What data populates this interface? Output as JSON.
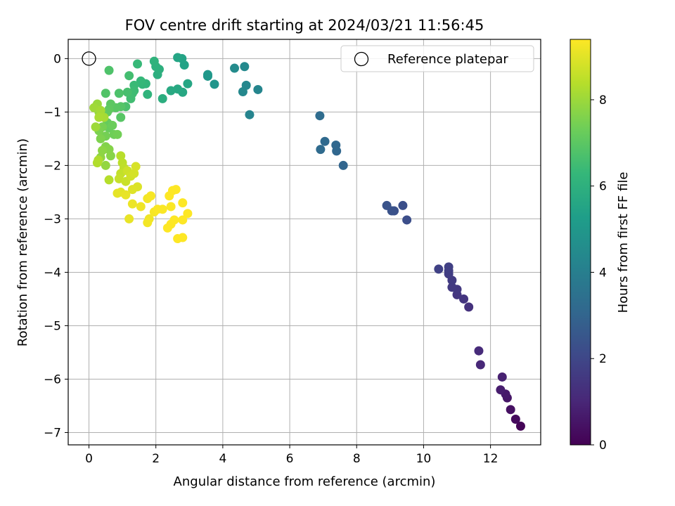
{
  "chart_data": {
    "type": "scatter",
    "title": "FOV centre drift starting at 2024/03/21 11:56:45",
    "xlabel": "Angular distance from reference (arcmin)",
    "ylabel": "Rotation from reference (arcmin)",
    "xlim": [
      -0.62,
      13.5
    ],
    "ylim": [
      -7.23,
      0.36
    ],
    "xticks": [
      0,
      2,
      4,
      6,
      8,
      10,
      12
    ],
    "yticks": [
      0,
      -1,
      -2,
      -3,
      -4,
      -5,
      -6,
      -7
    ],
    "grid": true,
    "legend": {
      "placement": "top-right",
      "entries": [
        "Reference platepar"
      ]
    },
    "reference_point": {
      "x": 0,
      "y": 0
    },
    "colorbar": {
      "label": "Hours from first FF file",
      "range": [
        0,
        9.4
      ],
      "ticks": [
        0,
        2,
        4,
        6,
        8
      ],
      "colormap": [
        "#440154",
        "#482878",
        "#3e4989",
        "#31688e",
        "#26828e",
        "#1f9e89",
        "#35b779",
        "#6ece58",
        "#b5de2b",
        "#fde725"
      ]
    },
    "points": [
      [
        12.9,
        -6.88,
        0.1
      ],
      [
        12.75,
        -6.75,
        0.25
      ],
      [
        12.6,
        -6.57,
        0.4
      ],
      [
        12.5,
        -6.35,
        0.55
      ],
      [
        12.45,
        -6.28,
        0.65
      ],
      [
        12.3,
        -6.2,
        0.75
      ],
      [
        12.35,
        -5.96,
        0.85
      ],
      [
        11.7,
        -5.73,
        1.05
      ],
      [
        11.65,
        -5.47,
        1.15
      ],
      [
        11.35,
        -4.65,
        1.35
      ],
      [
        11.2,
        -4.5,
        1.45
      ],
      [
        11.0,
        -4.42,
        1.5
      ],
      [
        11.0,
        -4.32,
        1.55
      ],
      [
        10.85,
        -4.28,
        1.6
      ],
      [
        10.85,
        -4.15,
        1.65
      ],
      [
        10.75,
        -4.03,
        1.7
      ],
      [
        10.75,
        -3.97,
        1.75
      ],
      [
        10.75,
        -3.9,
        1.8
      ],
      [
        10.45,
        -3.94,
        1.85
      ],
      [
        9.5,
        -3.02,
        2.25
      ],
      [
        9.38,
        -2.75,
        2.3
      ],
      [
        9.12,
        -2.85,
        2.35
      ],
      [
        9.05,
        -2.85,
        2.4
      ],
      [
        8.9,
        -2.75,
        2.45
      ],
      [
        7.6,
        -2.0,
        3.05
      ],
      [
        7.4,
        -1.73,
        3.1
      ],
      [
        7.38,
        -1.62,
        3.15
      ],
      [
        7.05,
        -1.55,
        3.2
      ],
      [
        6.92,
        -1.7,
        3.25
      ],
      [
        6.9,
        -1.07,
        3.3
      ],
      [
        4.8,
        -1.05,
        4.25
      ],
      [
        5.05,
        -0.58,
        4.3
      ],
      [
        4.7,
        -0.5,
        4.35
      ],
      [
        4.6,
        -0.62,
        4.4
      ],
      [
        4.65,
        -0.15,
        4.45
      ],
      [
        4.35,
        -0.18,
        4.5
      ],
      [
        3.75,
        -0.48,
        4.9
      ],
      [
        3.55,
        -0.33,
        4.95
      ],
      [
        3.55,
        -0.3,
        5.0
      ],
      [
        2.85,
        -0.12,
        5.4
      ],
      [
        2.78,
        0.0,
        5.45
      ],
      [
        2.65,
        0.02,
        5.5
      ],
      [
        2.95,
        -0.47,
        5.55
      ],
      [
        2.8,
        -0.63,
        5.6
      ],
      [
        2.65,
        -0.57,
        5.65
      ],
      [
        2.45,
        -0.6,
        5.7
      ],
      [
        2.2,
        -0.75,
        5.85
      ],
      [
        2.05,
        -0.3,
        5.9
      ],
      [
        2.1,
        -0.2,
        5.95
      ],
      [
        2.0,
        -0.15,
        6.0
      ],
      [
        1.95,
        -0.05,
        6.05
      ],
      [
        1.75,
        -0.67,
        6.1
      ],
      [
        1.7,
        -0.47,
        6.15
      ],
      [
        1.6,
        -0.48,
        6.2
      ],
      [
        1.55,
        -0.42,
        6.25
      ],
      [
        1.45,
        -0.1,
        6.3
      ],
      [
        1.35,
        -0.5,
        6.35
      ],
      [
        1.35,
        -0.6,
        6.4
      ],
      [
        1.3,
        -0.65,
        6.45
      ],
      [
        1.25,
        -0.75,
        6.5
      ],
      [
        1.2,
        -0.32,
        6.55
      ],
      [
        1.15,
        -0.63,
        6.6
      ],
      [
        1.1,
        -0.9,
        6.65
      ],
      [
        0.9,
        -0.65,
        6.7
      ],
      [
        0.6,
        -0.22,
        6.75
      ],
      [
        0.5,
        -0.65,
        6.8
      ],
      [
        0.95,
        -0.9,
        6.85
      ],
      [
        0.95,
        -1.1,
        6.9
      ],
      [
        0.8,
        -0.92,
        6.95
      ],
      [
        0.65,
        -0.85,
        7.0
      ],
      [
        0.6,
        -0.95,
        7.05
      ],
      [
        0.55,
        -1.0,
        7.1
      ],
      [
        0.55,
        -1.2,
        7.15
      ],
      [
        0.6,
        -1.3,
        7.2
      ],
      [
        0.7,
        -1.25,
        7.25
      ],
      [
        0.75,
        -1.42,
        7.3
      ],
      [
        0.85,
        -1.42,
        7.35
      ],
      [
        0.5,
        -1.45,
        7.4
      ],
      [
        0.4,
        -1.28,
        7.45
      ],
      [
        0.3,
        -1.35,
        7.5
      ],
      [
        0.35,
        -1.5,
        7.55
      ],
      [
        0.5,
        -1.65,
        7.6
      ],
      [
        0.6,
        -1.7,
        7.65
      ],
      [
        0.65,
        -1.82,
        7.7
      ],
      [
        0.4,
        -1.72,
        7.75
      ],
      [
        0.35,
        -1.85,
        7.8
      ],
      [
        0.5,
        -2.0,
        7.85
      ],
      [
        0.3,
        -1.0,
        7.9
      ],
      [
        0.25,
        -0.85,
        7.95
      ],
      [
        0.2,
        -1.28,
        8.0
      ],
      [
        0.15,
        -0.92,
        8.05
      ],
      [
        0.35,
        -0.97,
        8.1
      ],
      [
        0.45,
        -1.1,
        8.15
      ],
      [
        0.3,
        -1.1,
        8.2
      ],
      [
        0.28,
        -1.9,
        8.25
      ],
      [
        0.25,
        -1.95,
        8.3
      ],
      [
        0.6,
        -2.27,
        8.35
      ],
      [
        0.95,
        -1.82,
        8.4
      ],
      [
        1.0,
        -1.95,
        8.45
      ],
      [
        1.05,
        -2.05,
        8.5
      ],
      [
        0.95,
        -2.15,
        8.55
      ],
      [
        0.9,
        -2.25,
        8.6
      ],
      [
        1.1,
        -2.3,
        8.65
      ],
      [
        1.15,
        -2.1,
        8.7
      ],
      [
        1.25,
        -2.2,
        8.75
      ],
      [
        1.35,
        -2.15,
        8.8
      ],
      [
        1.4,
        -2.02,
        8.85
      ],
      [
        1.45,
        -2.4,
        8.9
      ],
      [
        1.3,
        -2.45,
        8.95
      ],
      [
        0.95,
        -2.5,
        9.0
      ],
      [
        0.85,
        -2.52,
        9.05
      ],
      [
        1.1,
        -2.55,
        9.1
      ],
      [
        1.3,
        -2.72,
        9.15
      ],
      [
        1.55,
        -2.77,
        9.2
      ],
      [
        1.75,
        -2.62,
        9.25
      ],
      [
        1.85,
        -2.57,
        9.3
      ],
      [
        1.2,
        -3.0,
        9.1
      ],
      [
        1.8,
        -3.0,
        9.2
      ],
      [
        1.75,
        -3.07,
        9.25
      ],
      [
        1.95,
        -2.87,
        9.3
      ],
      [
        2.05,
        -2.82,
        9.35
      ],
      [
        2.2,
        -2.82,
        9.35
      ],
      [
        2.4,
        -2.57,
        9.4
      ],
      [
        2.5,
        -2.47,
        9.4
      ],
      [
        2.6,
        -2.45,
        9.4
      ],
      [
        2.45,
        -2.77,
        9.35
      ],
      [
        2.8,
        -2.7,
        9.38
      ],
      [
        2.95,
        -2.9,
        9.4
      ],
      [
        2.8,
        -3.02,
        9.4
      ],
      [
        2.55,
        -3.02,
        9.4
      ],
      [
        2.45,
        -3.1,
        9.4
      ],
      [
        2.35,
        -3.17,
        9.4
      ],
      [
        2.65,
        -3.37,
        9.4
      ],
      [
        2.8,
        -3.35,
        9.4
      ]
    ]
  }
}
